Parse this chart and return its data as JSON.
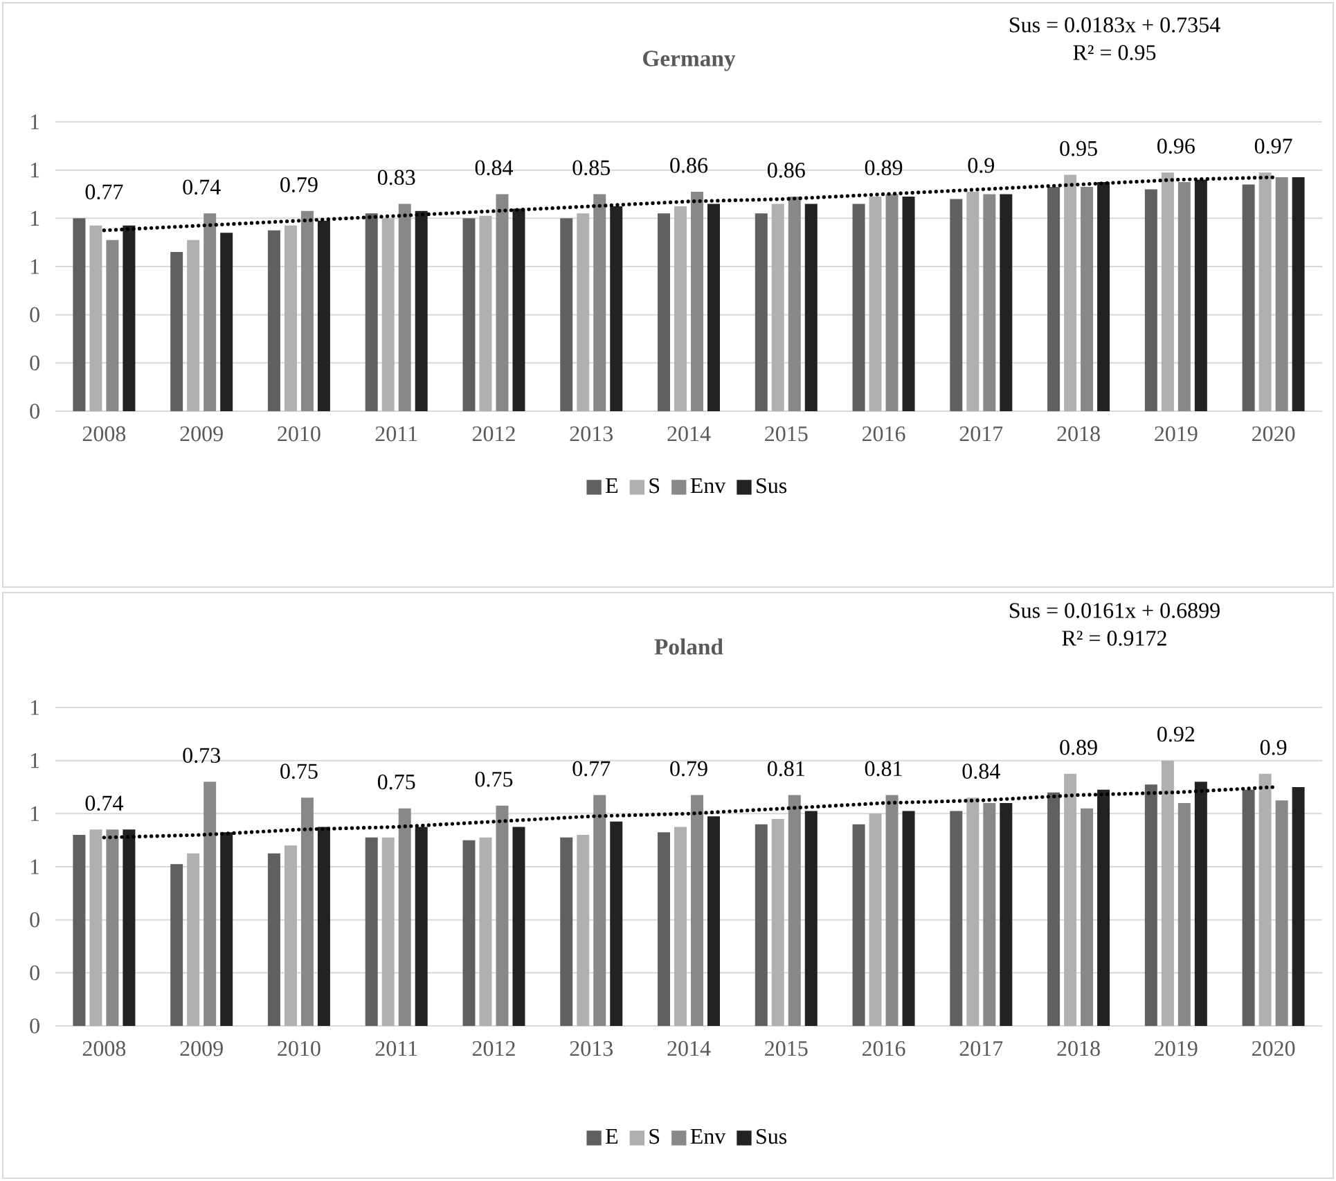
{
  "chart_data": [
    {
      "type": "bar",
      "title": "Germany",
      "categories": [
        "2008",
        "2009",
        "2010",
        "2011",
        "2012",
        "2013",
        "2014",
        "2015",
        "2016",
        "2017",
        "2018",
        "2019",
        "2020"
      ],
      "series": [
        {
          "name": "E",
          "color": "#606060",
          "values": [
            0.8,
            0.66,
            0.75,
            0.82,
            0.8,
            0.8,
            0.82,
            0.82,
            0.86,
            0.88,
            0.93,
            0.92,
            0.94
          ]
        },
        {
          "name": "S",
          "color": "#b0b0b0",
          "values": [
            0.77,
            0.71,
            0.77,
            0.8,
            0.81,
            0.82,
            0.85,
            0.86,
            0.89,
            0.91,
            0.98,
            0.99,
            0.99
          ]
        },
        {
          "name": "Env",
          "color": "#888888",
          "values": [
            0.71,
            0.82,
            0.83,
            0.86,
            0.9,
            0.9,
            0.91,
            0.89,
            0.9,
            0.9,
            0.93,
            0.95,
            0.97
          ]
        },
        {
          "name": "Sus",
          "color": "#222222",
          "values": [
            0.77,
            0.74,
            0.79,
            0.83,
            0.84,
            0.85,
            0.86,
            0.86,
            0.89,
            0.9,
            0.95,
            0.96,
            0.97
          ],
          "value_labels": [
            "0.77",
            "0.74",
            "0.79",
            "0.83",
            "0.84",
            "0.85",
            "0.86",
            "0.86",
            "0.89",
            "0.9",
            "0.95",
            "0.96",
            "0.97"
          ]
        },
        {
          "type": "line",
          "color": "#000000",
          "line_style": "dotted",
          "marker": "none",
          "values": [
            0.75,
            0.77,
            0.79,
            0.81,
            0.83,
            0.85,
            0.87,
            0.88,
            0.9,
            0.92,
            0.94,
            0.96,
            0.97
          ]
        }
      ],
      "ylim": [
        0,
        1.2
      ],
      "yticks": [
        0,
        {
          "value": 0.2,
          "label": "0"
        },
        {
          "value": 0.4,
          "label": "0"
        },
        {
          "value": 0.6,
          "label": "1"
        },
        {
          "value": 0.8,
          "label": "1"
        },
        1,
        {
          "value": 1.2,
          "label": "1"
        }
      ],
      "grid": "y",
      "legend": "bottom",
      "annotations": [
        "Sus = 0.0183x + 0.7354",
        "R² = 0.95"
      ]
    },
    {
      "type": "bar",
      "title": "Poland",
      "categories": [
        "2008",
        "2009",
        "2010",
        "2011",
        "2012",
        "2013",
        "2014",
        "2015",
        "2016",
        "2017",
        "2018",
        "2019",
        "2020"
      ],
      "series": [
        {
          "name": "E",
          "color": "#606060",
          "values": [
            0.72,
            0.61,
            0.65,
            0.71,
            0.7,
            0.71,
            0.73,
            0.76,
            0.76,
            0.81,
            0.88,
            0.91,
            0.89
          ]
        },
        {
          "name": "S",
          "color": "#b0b0b0",
          "values": [
            0.74,
            0.65,
            0.68,
            0.71,
            0.71,
            0.72,
            0.75,
            0.78,
            0.8,
            0.86,
            0.95,
            1.0,
            0.95
          ]
        },
        {
          "name": "Env",
          "color": "#888888",
          "values": [
            0.74,
            0.92,
            0.86,
            0.82,
            0.83,
            0.87,
            0.87,
            0.87,
            0.87,
            0.84,
            0.82,
            0.84,
            0.85
          ]
        },
        {
          "name": "Sus",
          "color": "#222222",
          "values": [
            0.74,
            0.73,
            0.75,
            0.75,
            0.75,
            0.77,
            0.79,
            0.81,
            0.81,
            0.84,
            0.89,
            0.92,
            0.9
          ],
          "value_labels": [
            "0.74",
            "0.73",
            "0.75",
            "0.75",
            "0.75",
            "0.77",
            "0.79",
            "0.81",
            "0.81",
            "0.84",
            "0.89",
            "0.92",
            "0.9"
          ]
        },
        {
          "type": "line",
          "color": "#000000",
          "line_style": "dotted",
          "marker": "none",
          "values": [
            0.71,
            0.72,
            0.74,
            0.75,
            0.77,
            0.79,
            0.8,
            0.82,
            0.84,
            0.85,
            0.87,
            0.88,
            0.9
          ]
        }
      ],
      "ylim": [
        0,
        1.2
      ],
      "yticks": [
        0,
        {
          "value": 0.2,
          "label": "0"
        },
        {
          "value": 0.4,
          "label": "0"
        },
        {
          "value": 0.6,
          "label": "1"
        },
        {
          "value": 0.8,
          "label": "1"
        },
        1,
        {
          "value": 1.2,
          "label": "1"
        }
      ],
      "grid": "y",
      "legend": "bottom",
      "annotations": [
        "Sus = 0.0161x + 0.6899",
        "R² = 0.9172"
      ]
    }
  ]
}
